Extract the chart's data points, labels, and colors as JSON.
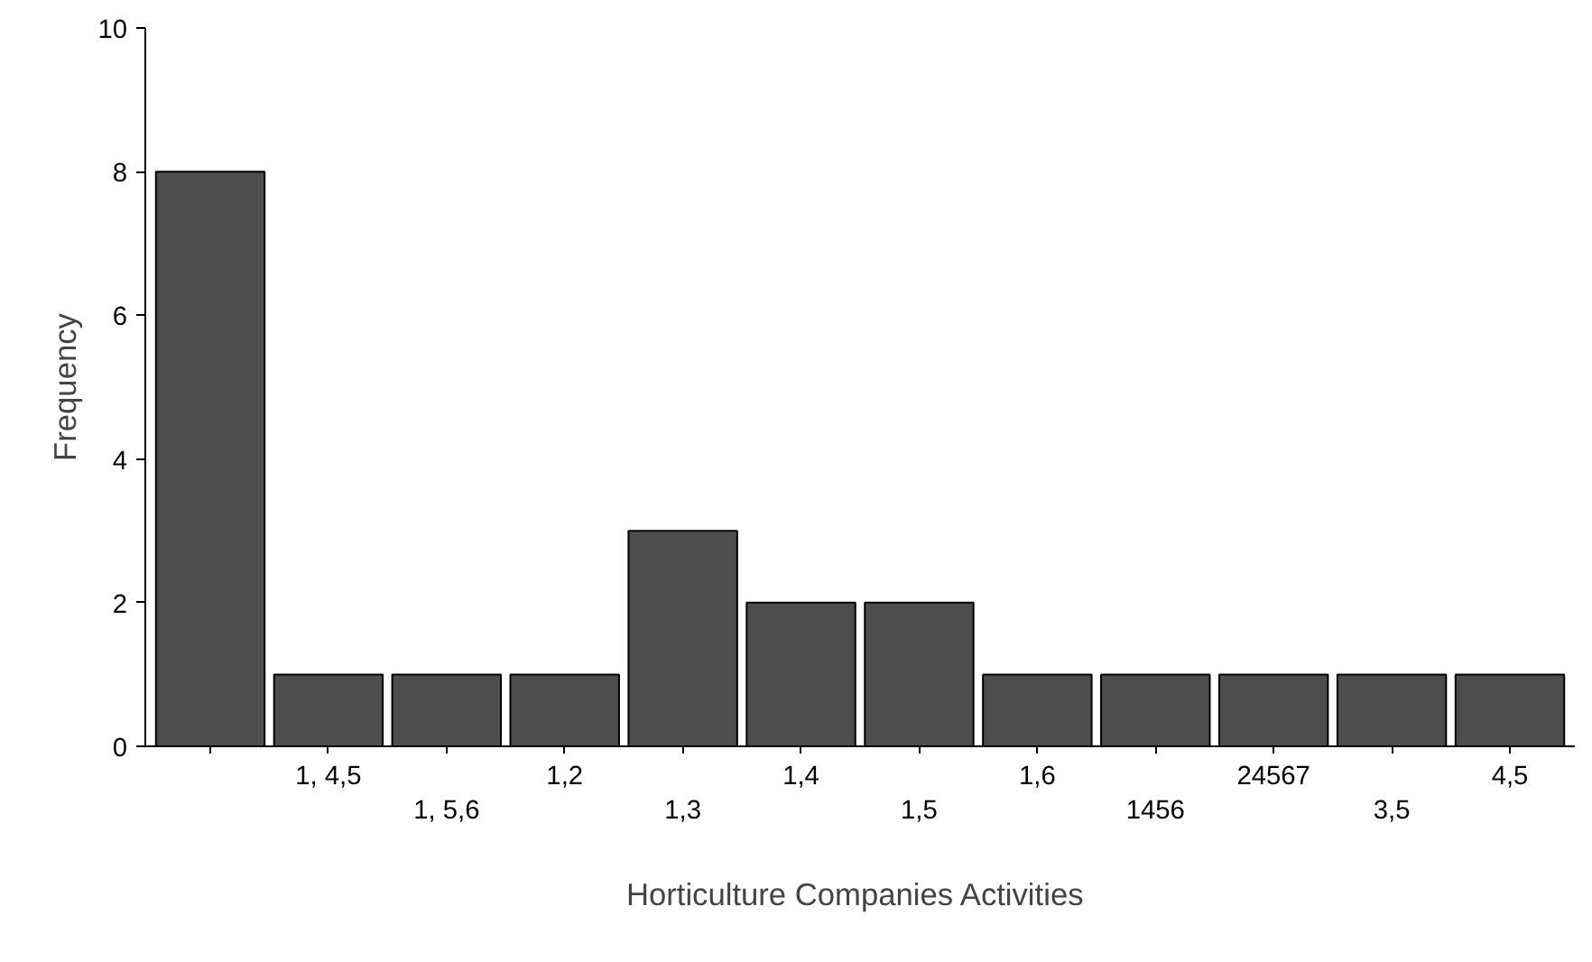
{
  "chart_data": {
    "type": "bar",
    "xlabel": "Horticulture Companies  Activities",
    "ylabel": "Frequency",
    "categories": [
      null,
      "1, 4,5",
      "1, 5,6",
      "1,2",
      "1,3",
      "1,4",
      "1,5",
      "1,6",
      "1456",
      "24567",
      "3,5",
      "4,5"
    ],
    "values": [
      8,
      1,
      1,
      1,
      3,
      2,
      2,
      1,
      1,
      1,
      1,
      1
    ],
    "color": "#4d4d4d",
    "ylim": [
      0,
      10
    ],
    "yticks": [
      0,
      2,
      4,
      6,
      8,
      10
    ],
    "grid": false
  }
}
